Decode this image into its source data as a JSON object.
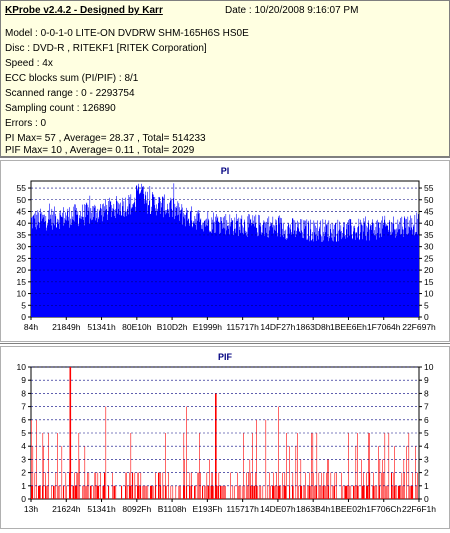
{
  "info": {
    "title": "KProbe v2.4.2 - Designed by Karr",
    "date": "Date : 10/20/2008 9:16:07 PM",
    "lines": [
      "Model : 0-0-1-0 LITE-ON DVDRW SHM-165H6S HS0E",
      "Disc : DVD-R , RITEKF1 [RITEK Corporation]",
      "Speed : 4x",
      "ECC blocks sum (PI/PIF) : 8/1",
      "Scanned range : 0 - 2293754",
      "Sampling count : 126890",
      "Errors : 0",
      "PI Max= 57 , Average= 28.37 , Total= 514233",
      "PIF Max= 10 , Average= 0.11 , Total= 2029"
    ]
  },
  "chart_data": [
    {
      "type": "bar",
      "title": "PI",
      "ylim": [
        0,
        58
      ],
      "yticks": [
        0,
        5,
        10,
        15,
        20,
        25,
        30,
        35,
        40,
        45,
        50,
        55
      ],
      "xtick_labels": [
        "84h",
        "21849h",
        "51341h",
        "80E10h",
        "B10D2h",
        "E1999h",
        "115717h",
        "14DF27h",
        "1863D8h",
        "1BEE6Eh",
        "1F7064h",
        "22F697h"
      ],
      "color": "#0000ff",
      "grid": true,
      "profile": [
        [
          0,
          42
        ],
        [
          5,
          43
        ],
        [
          10,
          44
        ],
        [
          15,
          45
        ],
        [
          20,
          47
        ],
        [
          25,
          49
        ],
        [
          30,
          50
        ],
        [
          35,
          48
        ],
        [
          40,
          44
        ],
        [
          45,
          42
        ],
        [
          50,
          41
        ],
        [
          55,
          40
        ],
        [
          60,
          40
        ],
        [
          65,
          39
        ],
        [
          70,
          38
        ],
        [
          75,
          38
        ],
        [
          80,
          38
        ],
        [
          85,
          38
        ],
        [
          90,
          39
        ],
        [
          95,
          40
        ],
        [
          100,
          41
        ]
      ],
      "max": 57
    },
    {
      "type": "bar",
      "title": "PIF",
      "ylim": [
        0,
        10
      ],
      "yticks": [
        0,
        1,
        2,
        3,
        4,
        5,
        6,
        7,
        8,
        9,
        10
      ],
      "xtick_labels": [
        "13h",
        "21624h",
        "51341h",
        "8092Fh",
        "B1108h",
        "E193Fh",
        "115717h",
        "14DE07h",
        "1863B4h",
        "1BEE02h",
        "1F706Ch",
        "22F6F1h"
      ],
      "color": "#ff0000",
      "grid": true,
      "max": 10
    }
  ]
}
